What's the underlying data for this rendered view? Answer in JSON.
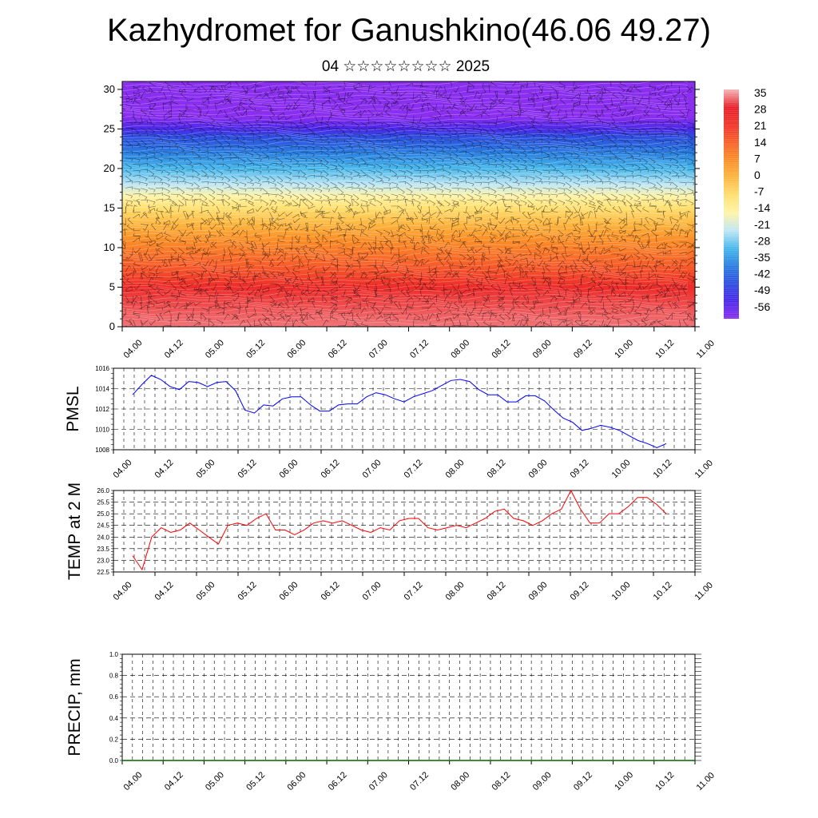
{
  "header": {
    "title": "Kazhydromet for Ganushkino(46.06 49.27)",
    "subtitle": "04 ☆☆☆☆☆☆☆☆ 2025"
  },
  "time_ticks": [
    "04.00",
    "04.12",
    "05.00",
    "05.12",
    "06.00",
    "06.12",
    "07.00",
    "07.12",
    "08.00",
    "08.12",
    "09.00",
    "09.12",
    "10.00",
    "10.12",
    "11.00"
  ],
  "chart_data": [
    {
      "type": "heatmap",
      "description_axis": "height (km) vs time",
      "x": [
        "04.00",
        "04.12",
        "05.00",
        "05.12",
        "06.00",
        "06.12",
        "07.00",
        "07.12",
        "08.00",
        "08.12",
        "09.00",
        "09.12",
        "10.00",
        "10.12",
        "11.00"
      ],
      "ylim": [
        0,
        31
      ],
      "yticks": [
        0,
        5,
        10,
        15,
        20,
        25,
        30
      ],
      "colorbar": {
        "labels": [
          "35",
          "28",
          "21",
          "14",
          "7",
          "0",
          "-7",
          "-14",
          "-21",
          "-28",
          "-35",
          "-42",
          "-49",
          "-56"
        ],
        "colors": [
          "#f6b4b4",
          "#e8202a",
          "#f0342a",
          "#f8612a",
          "#fb8f28",
          "#fdb640",
          "#ffe070",
          "#fff4a8",
          "#bfe7f5",
          "#48b8ec",
          "#2a7ee0",
          "#2e4ee0",
          "#4a28e8",
          "#8a2ef0"
        ]
      },
      "profile": [
        {
          "h": 0,
          "t": 32
        },
        {
          "h": 5,
          "t": 24
        },
        {
          "h": 8,
          "t": 14
        },
        {
          "h": 11,
          "t": 7
        },
        {
          "h": 13,
          "t": 0
        },
        {
          "h": 15,
          "t": -7
        },
        {
          "h": 16.5,
          "t": -14
        },
        {
          "h": 18,
          "t": -21
        },
        {
          "h": 20,
          "t": -28
        },
        {
          "h": 22,
          "t": -35
        },
        {
          "h": 24,
          "t": -42
        },
        {
          "h": 25,
          "t": -49
        },
        {
          "h": 26.5,
          "t": -56
        },
        {
          "h": 31,
          "t": -56
        }
      ],
      "wind_barbs": true
    },
    {
      "type": "line",
      "ylabel": "PMSL",
      "ylim": [
        1008,
        1016
      ],
      "yticks": [
        1008,
        1010,
        1012,
        1014,
        1016
      ],
      "color": "#0000ff",
      "grid": true,
      "values": [
        1013.4,
        1014.4,
        1015.3,
        1014.9,
        1014.2,
        1013.9,
        1014.7,
        1014.6,
        1014.2,
        1014.6,
        1014.7,
        1013.8,
        1011.9,
        1011.6,
        1012.4,
        1012.3,
        1013.0,
        1013.2,
        1013.2,
        1012.4,
        1011.8,
        1011.8,
        1012.4,
        1012.5,
        1012.5,
        1013.2,
        1013.6,
        1013.4,
        1013.0,
        1012.7,
        1013.2,
        1013.5,
        1013.8,
        1014.3,
        1014.8,
        1014.9,
        1014.7,
        1013.9,
        1013.4,
        1013.4,
        1012.7,
        1012.7,
        1013.3,
        1013.3,
        1012.8,
        1011.9,
        1011.1,
        1010.7,
        1009.9,
        1010.1,
        1010.4,
        1010.2,
        1009.9,
        1009.4,
        1008.9,
        1008.6,
        1008.2,
        1008.6
      ]
    },
    {
      "type": "line",
      "ylabel": "TEMP at 2 M",
      "ylim": [
        22.5,
        26.0
      ],
      "yticks": [
        "22.5",
        "23.0",
        "23.5",
        "24.0",
        "24.5",
        "25.0",
        "25.5",
        "26.0"
      ],
      "color": "#ff0000",
      "grid": true,
      "values": [
        23.2,
        22.6,
        24.0,
        24.4,
        24.2,
        24.3,
        24.6,
        24.3,
        24.0,
        23.7,
        24.5,
        24.6,
        24.5,
        24.8,
        25.0,
        24.3,
        24.3,
        24.1,
        24.3,
        24.6,
        24.7,
        24.6,
        24.7,
        24.5,
        24.3,
        24.2,
        24.4,
        24.3,
        24.7,
        24.8,
        24.8,
        24.4,
        24.3,
        24.4,
        24.5,
        24.4,
        24.6,
        24.8,
        25.1,
        25.2,
        24.8,
        24.7,
        24.5,
        24.7,
        25.0,
        25.2,
        26.0,
        25.2,
        24.6,
        24.6,
        25.0,
        25.0,
        25.3,
        25.7,
        25.7,
        25.4,
        25.0
      ]
    },
    {
      "type": "line",
      "ylabel": "PRECIP, mm",
      "ylim": [
        0.0,
        1.0
      ],
      "yticks": [
        "0.0",
        "0.2",
        "0.4",
        "0.6",
        "0.8",
        "1.0"
      ],
      "color": "#006400",
      "grid": true,
      "values": [
        0.0,
        0.0
      ]
    }
  ]
}
